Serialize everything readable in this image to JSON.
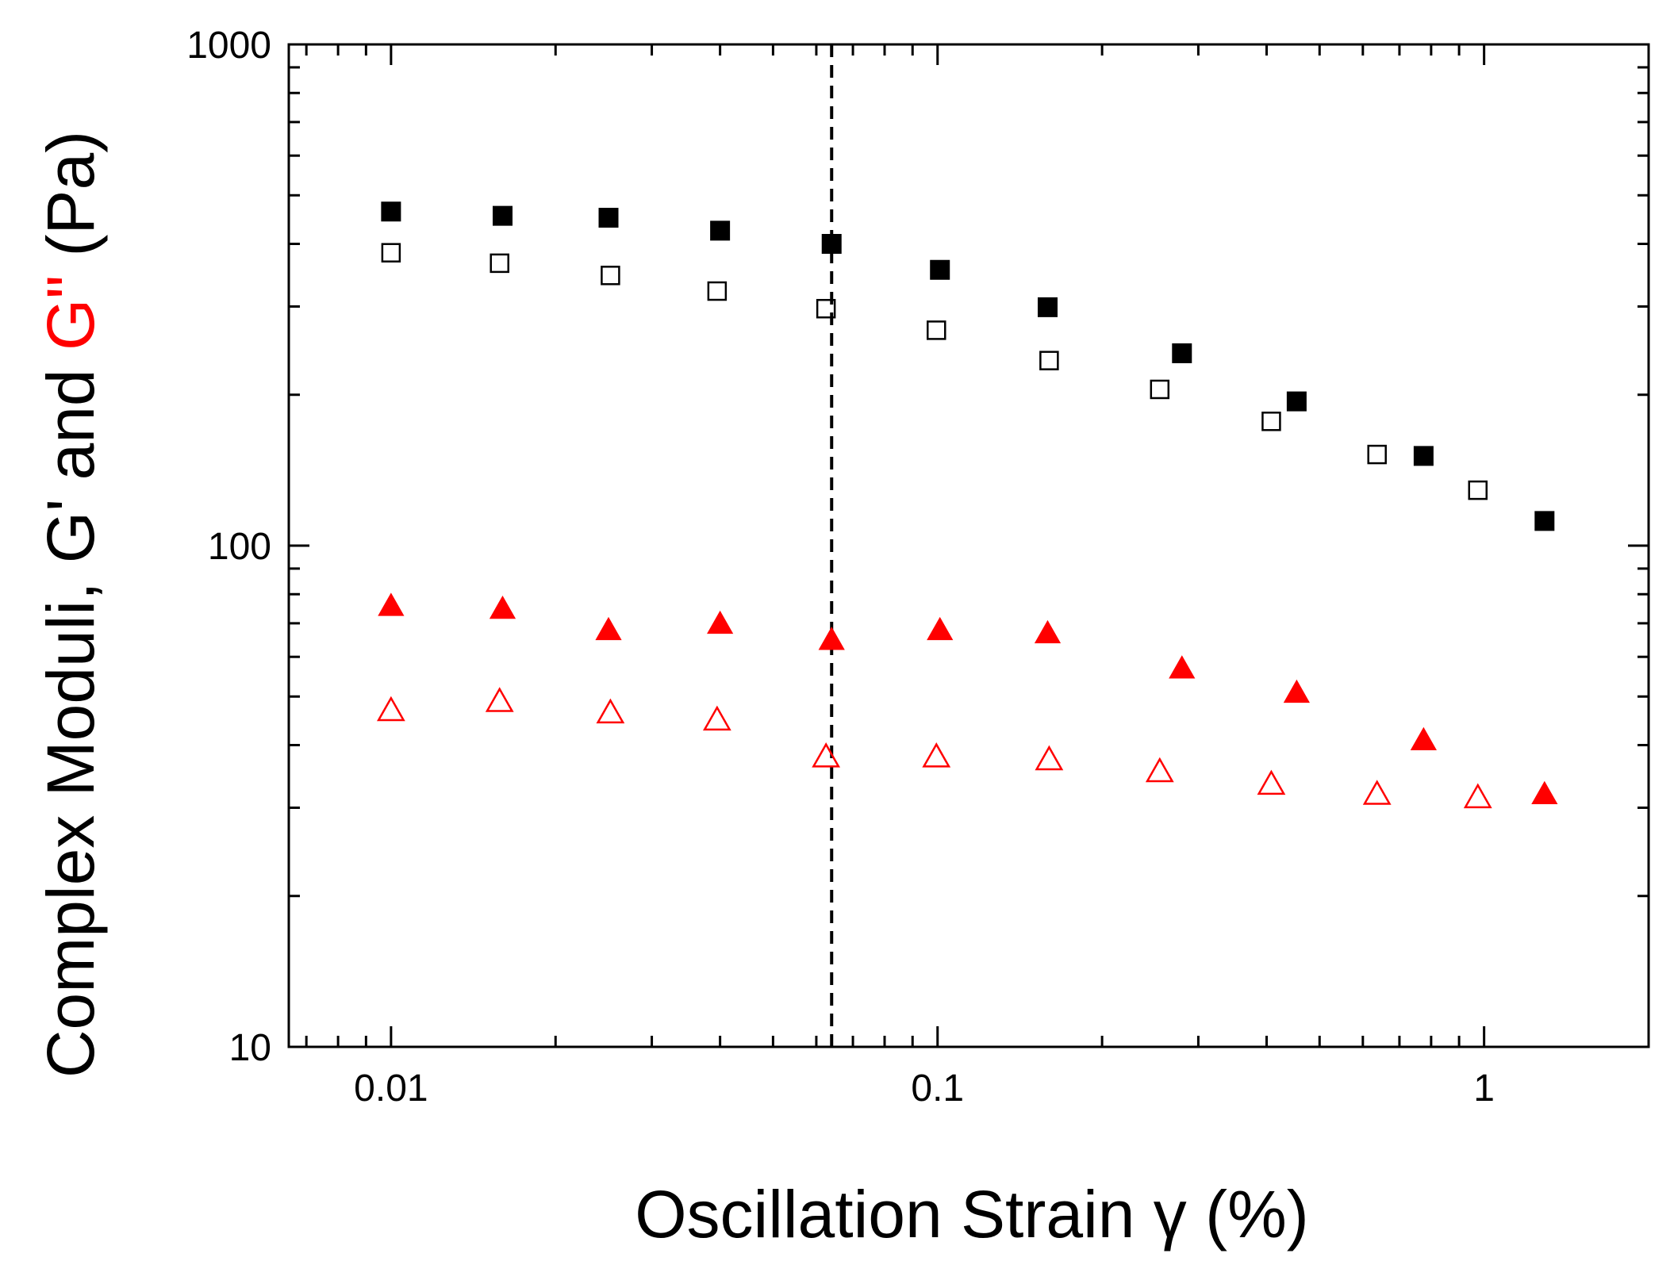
{
  "chart_data": {
    "type": "scatter",
    "title": "",
    "xlabel": "Oscillation Strain γ (%)",
    "ylabel_parts": [
      {
        "text": "Complex Moduli, ",
        "color": "#000000"
      },
      {
        "text": "G'",
        "color": "#000000"
      },
      {
        "text": " and ",
        "color": "#000000"
      },
      {
        "text": "G\"",
        "color": "#ff0000"
      },
      {
        "text": " (Pa)",
        "color": "#000000"
      }
    ],
    "xscale": "log",
    "yscale": "log",
    "xlim": [
      0.0065,
      2.0
    ],
    "ylim": [
      10,
      1000
    ],
    "x_ticks": [
      {
        "value": 0.01,
        "label": "0.01"
      },
      {
        "value": 0.1,
        "label": "0.1"
      },
      {
        "value": 1,
        "label": "1"
      }
    ],
    "y_ticks": [
      {
        "value": 10,
        "label": "10"
      },
      {
        "value": 100,
        "label": "100"
      },
      {
        "value": 1000,
        "label": "1000"
      }
    ],
    "vline": {
      "x": 0.064,
      "style": "dashed"
    },
    "series": [
      {
        "name": "G' (filled square)",
        "marker": "square",
        "filled": true,
        "color": "#000000",
        "x": [
          0.01,
          0.016,
          0.025,
          0.04,
          0.064,
          0.101,
          0.159,
          0.28,
          0.454,
          0.775,
          1.29
        ],
        "y": [
          464,
          455,
          451,
          425,
          400,
          355,
          299,
          242,
          194,
          151,
          112
        ]
      },
      {
        "name": "G' (open square)",
        "marker": "square",
        "filled": false,
        "color": "#000000",
        "x": [
          0.01,
          0.0158,
          0.0252,
          0.0395,
          0.0625,
          0.0995,
          0.16,
          0.255,
          0.408,
          0.637,
          0.974
        ],
        "y": [
          384,
          366,
          346,
          322,
          297,
          269,
          234,
          205,
          177,
          152,
          129
        ]
      },
      {
        "name": "G\" (filled triangle)",
        "marker": "triangle",
        "filled": true,
        "color": "#ff0000",
        "x": [
          0.01,
          0.016,
          0.025,
          0.04,
          0.064,
          0.101,
          0.159,
          0.28,
          0.454,
          0.775,
          1.29
        ],
        "y": [
          76,
          75,
          68,
          70,
          65,
          68,
          67,
          57,
          51,
          41,
          32
        ]
      },
      {
        "name": "G\" (open triangle)",
        "marker": "triangle",
        "filled": false,
        "color": "#ff0000",
        "x": [
          0.01,
          0.0158,
          0.0252,
          0.0395,
          0.0625,
          0.0995,
          0.16,
          0.255,
          0.408,
          0.637,
          0.974
        ],
        "y": [
          47,
          49,
          46.5,
          45,
          38,
          38,
          37.5,
          35.5,
          33.5,
          32,
          31.5
        ]
      }
    ]
  }
}
